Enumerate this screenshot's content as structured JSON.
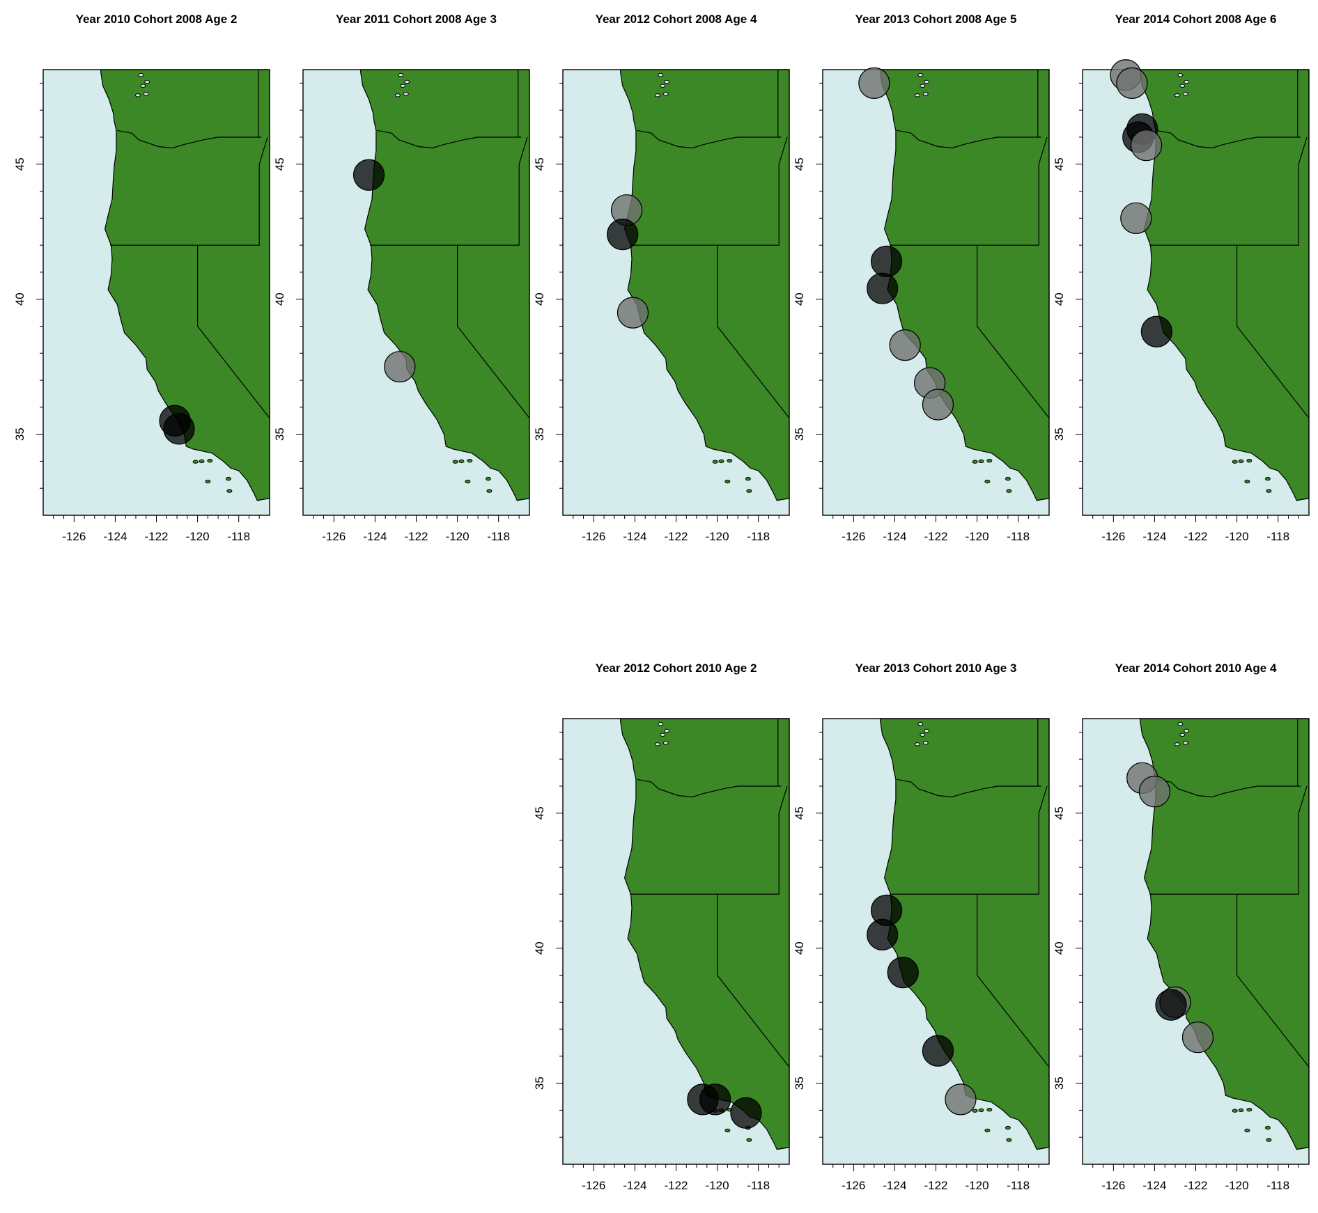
{
  "colors": {
    "ocean": "#d6ecec",
    "land": "#3c8726",
    "border": "#000000",
    "point_dark": "#000000",
    "point_gray": "#6f7371"
  },
  "axes": {
    "xlim": [
      -127.5,
      -116.5
    ],
    "ylim": [
      32,
      48.5
    ],
    "x_ticks": [
      -126,
      -124,
      -122,
      -120,
      -118
    ],
    "y_ticks": [
      35,
      40,
      45
    ],
    "x_tick_labels": [
      "-126",
      "-124",
      "-122",
      "-120",
      "-118"
    ],
    "y_tick_labels": [
      "35",
      "40",
      "45"
    ]
  },
  "chart_data": [
    {
      "type": "scatter",
      "title": "Year 2010 Cohort 2008 Age 2",
      "points": [
        {
          "lon": -121.1,
          "lat": 35.5,
          "shade": "dark"
        },
        {
          "lon": -120.9,
          "lat": 35.2,
          "shade": "dark"
        }
      ]
    },
    {
      "type": "scatter",
      "title": "Year 2011 Cohort 2008 Age 3",
      "points": [
        {
          "lon": -124.3,
          "lat": 44.6,
          "shade": "dark"
        },
        {
          "lon": -122.8,
          "lat": 37.5,
          "shade": "gray"
        }
      ]
    },
    {
      "type": "scatter",
      "title": "Year 2012 Cohort 2008 Age 4",
      "points": [
        {
          "lon": -124.4,
          "lat": 43.3,
          "shade": "gray"
        },
        {
          "lon": -124.6,
          "lat": 42.4,
          "shade": "dark"
        },
        {
          "lon": -124.1,
          "lat": 39.5,
          "shade": "gray"
        }
      ]
    },
    {
      "type": "scatter",
      "title": "Year 2013 Cohort 2008 Age 5",
      "points": [
        {
          "lon": -125.0,
          "lat": 48.0,
          "shade": "gray"
        },
        {
          "lon": -124.4,
          "lat": 41.4,
          "shade": "dark"
        },
        {
          "lon": -124.6,
          "lat": 40.4,
          "shade": "dark"
        },
        {
          "lon": -123.5,
          "lat": 38.3,
          "shade": "gray"
        },
        {
          "lon": -122.3,
          "lat": 36.9,
          "shade": "gray"
        },
        {
          "lon": -121.9,
          "lat": 36.1,
          "shade": "gray"
        }
      ]
    },
    {
      "type": "scatter",
      "title": "Year 2014 Cohort 2008 Age 6",
      "points": [
        {
          "lon": -125.4,
          "lat": 48.3,
          "shade": "gray"
        },
        {
          "lon": -125.1,
          "lat": 48.0,
          "shade": "gray"
        },
        {
          "lon": -124.6,
          "lat": 46.3,
          "shade": "dark"
        },
        {
          "lon": -124.8,
          "lat": 46.0,
          "shade": "dark"
        },
        {
          "lon": -124.4,
          "lat": 45.7,
          "shade": "gray"
        },
        {
          "lon": -124.9,
          "lat": 43.0,
          "shade": "gray"
        },
        {
          "lon": -123.9,
          "lat": 38.8,
          "shade": "dark"
        }
      ]
    },
    {
      "type": "scatter",
      "title": "Year 2012 Cohort 2010 Age 2",
      "points": [
        {
          "lon": -120.7,
          "lat": 34.4,
          "shade": "dark"
        },
        {
          "lon": -120.1,
          "lat": 34.4,
          "shade": "dark"
        },
        {
          "lon": -118.6,
          "lat": 33.9,
          "shade": "dark"
        }
      ]
    },
    {
      "type": "scatter",
      "title": "Year 2013 Cohort 2010 Age 3",
      "points": [
        {
          "lon": -124.4,
          "lat": 41.4,
          "shade": "dark"
        },
        {
          "lon": -124.6,
          "lat": 40.5,
          "shade": "dark"
        },
        {
          "lon": -123.6,
          "lat": 39.1,
          "shade": "dark"
        },
        {
          "lon": -121.9,
          "lat": 36.2,
          "shade": "dark"
        },
        {
          "lon": -120.8,
          "lat": 34.4,
          "shade": "gray"
        }
      ]
    },
    {
      "type": "scatter",
      "title": "Year 2014 Cohort 2010 Age 4",
      "points": [
        {
          "lon": -124.6,
          "lat": 46.3,
          "shade": "gray"
        },
        {
          "lon": -124.0,
          "lat": 45.8,
          "shade": "gray"
        },
        {
          "lon": -123.0,
          "lat": 38.0,
          "shade": "gray"
        },
        {
          "lon": -123.2,
          "lat": 37.9,
          "shade": "dark"
        },
        {
          "lon": -121.9,
          "lat": 36.7,
          "shade": "gray"
        }
      ]
    }
  ]
}
